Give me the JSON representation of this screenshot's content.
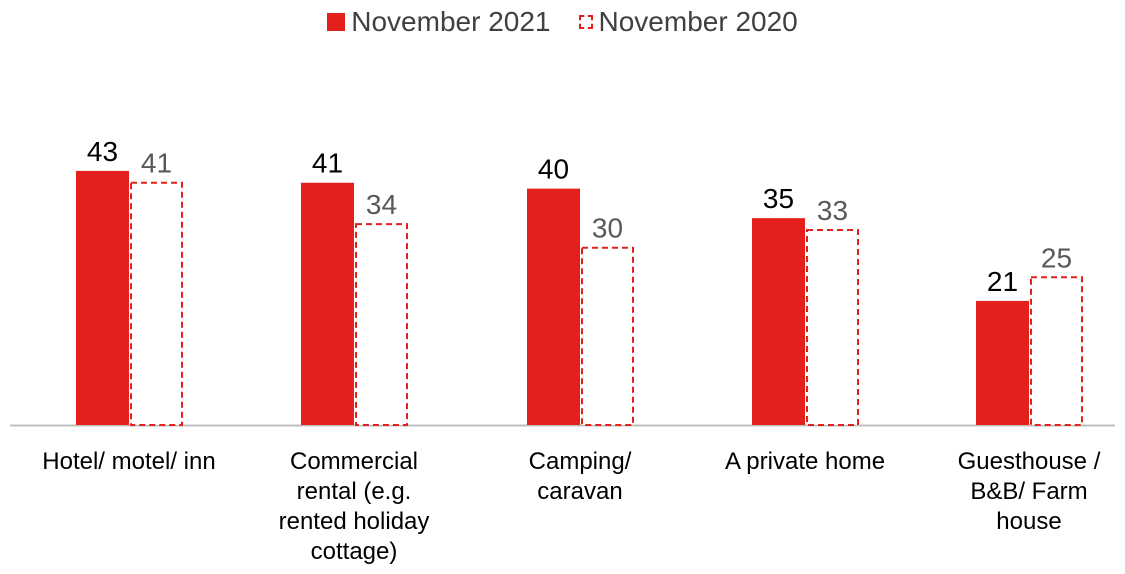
{
  "chart_data": {
    "type": "bar",
    "categories": [
      "Hotel/ motel/ inn",
      "Commercial rental (e.g. rented holiday cottage)",
      "Camping/ caravan",
      "A private home",
      "Guesthouse / B&B/ Farm house"
    ],
    "category_lines": [
      [
        "Hotel/ motel/ inn"
      ],
      [
        "Commercial",
        "rental (e.g.",
        "rented holiday",
        "cottage)"
      ],
      [
        "Camping/",
        "caravan"
      ],
      [
        "A private home"
      ],
      [
        "Guesthouse /",
        "B&B/ Farm",
        "house"
      ]
    ],
    "series": [
      {
        "name": "November 2021",
        "values": [
          43,
          41,
          40,
          35,
          21
        ],
        "color": "#E3201B",
        "style": "solid"
      },
      {
        "name": "November 2020",
        "values": [
          41,
          34,
          30,
          33,
          25
        ],
        "color": "#E3201B",
        "style": "dashed"
      }
    ],
    "title": "",
    "xlabel": "",
    "ylabel": "",
    "ylim": [
      0,
      55
    ],
    "grid": false,
    "legend_position": "top-center",
    "data_labels": true,
    "label_colors": {
      "November 2021": "#000000",
      "November 2020": "#595959"
    },
    "axis_color": "#BFBFBF"
  }
}
